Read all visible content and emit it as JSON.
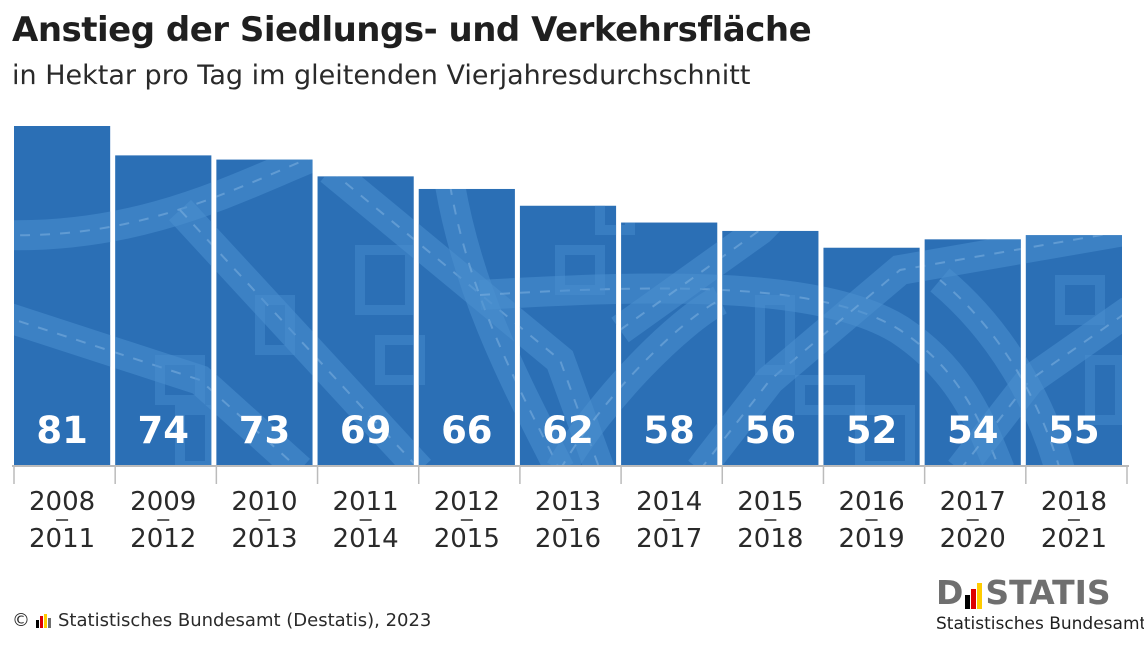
{
  "header": {
    "title": "Anstieg der Siedlungs- und Verkehrsfläche",
    "subtitle": "in Hektar pro Tag im gleitenden Vierjahresdurchschnitt"
  },
  "chart_data": {
    "type": "bar",
    "categories": [
      [
        "2008",
        "2011"
      ],
      [
        "2009",
        "2012"
      ],
      [
        "2010",
        "2013"
      ],
      [
        "2011",
        "2014"
      ],
      [
        "2012",
        "2015"
      ],
      [
        "2013",
        "2016"
      ],
      [
        "2014",
        "2017"
      ],
      [
        "2015",
        "2018"
      ],
      [
        "2016",
        "2019"
      ],
      [
        "2017",
        "2020"
      ],
      [
        "2018",
        "2021"
      ]
    ],
    "values": [
      81,
      74,
      73,
      69,
      66,
      62,
      58,
      56,
      52,
      54,
      55
    ],
    "title": "Anstieg der Siedlungs- und Verkehrsfläche",
    "subtitle": "in Hektar pro Tag im gleitenden Vierjahresdurchschnitt",
    "xlabel": "",
    "ylabel": "",
    "ylim": [
      0,
      81
    ],
    "grid": false,
    "colors": {
      "bar": "#2b6fb5",
      "road": "#4a8fd0",
      "axis": "#bbbbbb"
    }
  },
  "footer": {
    "copyright_symbol": "©",
    "source": "Statistisches Bundesamt (Destatis), 2023"
  },
  "logo": {
    "word_left": "D",
    "word_right": "STATIS",
    "subtitle": "Statistisches Bundesamt",
    "flag_colors": [
      "#000000",
      "#dd0000",
      "#ffcc00"
    ]
  }
}
